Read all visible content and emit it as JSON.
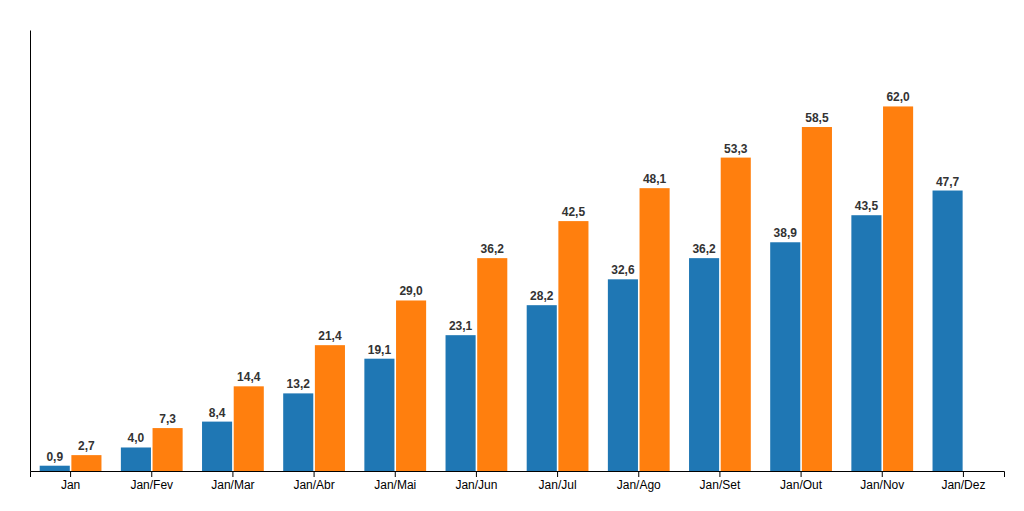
{
  "chart_data": {
    "type": "bar",
    "categories": [
      "Jan",
      "Jan/Fev",
      "Jan/Mar",
      "Jan/Abr",
      "Jan/Mai",
      "Jan/Jun",
      "Jan/Jul",
      "Jan/Ago",
      "Jan/Set",
      "Jan/Out",
      "Jan/Nov",
      "Jan/Dez"
    ],
    "series": [
      {
        "values": [
          0.9,
          4.0,
          8.4,
          13.2,
          19.1,
          23.1,
          28.2,
          32.6,
          36.2,
          38.9,
          43.5,
          47.7
        ],
        "value_labels": [
          "0,9",
          "4,0",
          "8,4",
          "13,2",
          "19,1",
          "23,1",
          "28,2",
          "32,6",
          "36,2",
          "38,9",
          "43,5",
          "47,7"
        ]
      },
      {
        "values": [
          2.7,
          7.3,
          14.4,
          21.4,
          29.0,
          36.2,
          42.5,
          48.1,
          53.3,
          58.5,
          62.0,
          0
        ],
        "value_labels": [
          "2,7",
          "7,3",
          "14,4",
          "21,4",
          "29,0",
          "36,2",
          "42,5",
          "48,1",
          "53,3",
          "58,5",
          "62,0",
          null
        ]
      }
    ],
    "ylim": [
      0,
      75
    ],
    "data_labels": true,
    "tick_labels": "x"
  }
}
